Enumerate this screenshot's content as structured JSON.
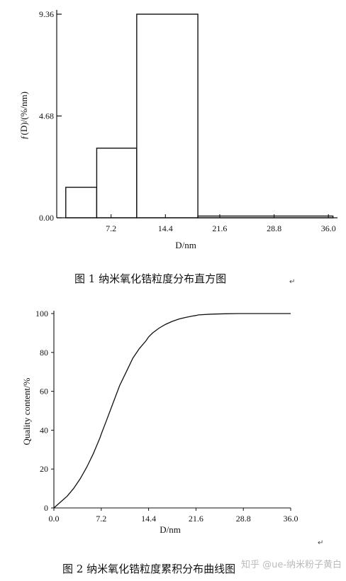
{
  "chart_data": [
    {
      "type": "bar",
      "bins": [
        [
          1.2,
          5.3
        ],
        [
          5.3,
          10.6
        ],
        [
          10.6,
          18.7
        ],
        [
          18.7,
          36.6
        ]
      ],
      "values": [
        1.4,
        3.2,
        9.36,
        0.08
      ],
      "ylabel": "ƒ(D)/(%/nm)",
      "xlabel": "D/nm",
      "xticks": [
        7.2,
        14.4,
        21.6,
        28.8,
        36.0
      ],
      "xtick_labels": [
        "7.2",
        "14.4",
        "21.6",
        "28.8",
        "36.0"
      ],
      "yticks": [
        0.0,
        4.68,
        9.36
      ],
      "ytick_labels": [
        "0.00",
        "4.68",
        "9.36"
      ],
      "xlim": [
        0,
        37.2
      ],
      "ylim": [
        0,
        9.36
      ],
      "caption": "图 1  纳米氧化锆粒度分布直方图"
    },
    {
      "type": "line",
      "x": [
        0,
        1,
        2,
        3,
        4,
        5,
        6,
        7,
        7.2,
        8,
        9,
        10,
        11,
        12,
        13,
        14,
        14.4,
        15,
        16,
        17,
        18,
        19,
        20,
        21,
        21.6,
        22,
        24,
        26,
        28,
        30,
        32,
        36
      ],
      "y": [
        0,
        3,
        6,
        10,
        15,
        21,
        28,
        36,
        38,
        45,
        54,
        63,
        70,
        77,
        82,
        86,
        88,
        90,
        92.5,
        94.5,
        96,
        97.2,
        98,
        98.7,
        99,
        99.3,
        99.7,
        99.9,
        100,
        100,
        100,
        100
      ],
      "xlabel": "D/nm",
      "ylabel": "Quality content/%",
      "xticks": [
        0.0,
        7.2,
        14.4,
        21.6,
        28.8,
        36.0
      ],
      "xtick_labels": [
        "0.0",
        "7.2",
        "14.4",
        "21.6",
        "28.8",
        "36.0"
      ],
      "yticks": [
        0,
        20,
        40,
        60,
        80,
        100
      ],
      "ytick_labels": [
        "0",
        "20",
        "40",
        "60",
        "80",
        "100"
      ],
      "xlim": [
        0,
        36
      ],
      "ylim": [
        0,
        100
      ],
      "caption": "图 2  纳米氧化锆粒度累积分布曲线图"
    }
  ],
  "watermark": "知乎 @ue-纳米粉子黄白",
  "return_mark": "↵"
}
